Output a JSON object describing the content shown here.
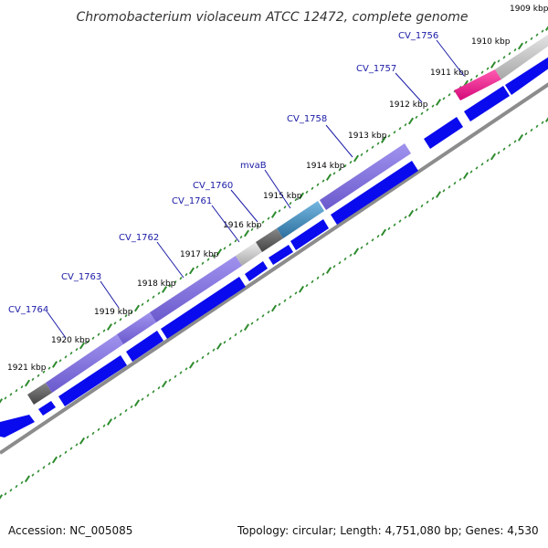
{
  "title": "Chromobacterium violaceum ATCC 12472, complete genome",
  "footer": {
    "accession": "Accession: NC_005085",
    "info": "Topology: circular; Length: 4,751,080 bp; Genes: 4,530"
  },
  "kbp_labels": [
    "1909 kbp",
    "1910 kbp",
    "1911 kbp",
    "1912 kbp",
    "1913 kbp",
    "1914 kbp",
    "1915 kbp",
    "1916 kbp",
    "1917 kbp",
    "1918 kbp",
    "1919 kbp",
    "1920 kbp",
    "1921 kbp"
  ],
  "genes": [
    {
      "name": "CV_1756",
      "color": "#e8188c"
    },
    {
      "name": "CV_1757",
      "color": "#0a0aee"
    },
    {
      "name": "CV_1758",
      "color": "#7f6fd8"
    },
    {
      "name": "mvaB",
      "color": "#3a8fc0"
    },
    {
      "name": "CV_1760",
      "color": "#555555"
    },
    {
      "name": "CV_1761",
      "color": "#bbbbbb"
    },
    {
      "name": "CV_1762",
      "color": "#7f6fd8"
    },
    {
      "name": "CV_1763",
      "color": "#7f6fd8"
    },
    {
      "name": "CV_1764",
      "color": "#555555"
    }
  ],
  "colors": {
    "tick": "#2e8b2e",
    "cds": "#0a0aee",
    "backbone": "#8c8c8c"
  }
}
